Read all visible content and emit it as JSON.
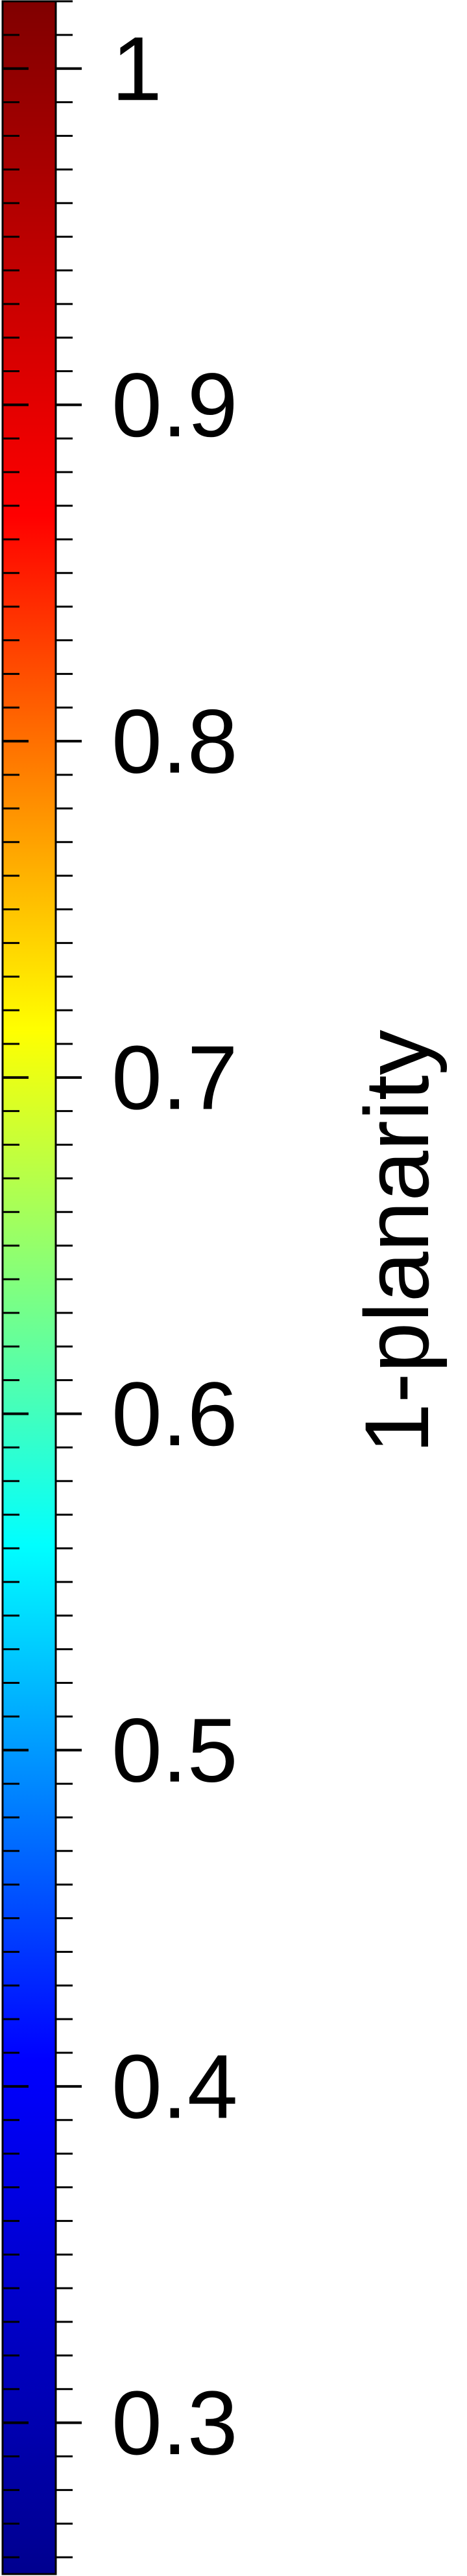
{
  "chart_data": {
    "type": "heatmap",
    "colorbar_orientation": "vertical",
    "colormap": "jet",
    "colormap_stops": [
      "#00008f",
      "#0000ff",
      "#00ffff",
      "#ffff00",
      "#ff0000",
      "#800000"
    ],
    "ylim": [
      0.255,
      1.02
    ],
    "ticks": [
      0.3,
      0.4,
      0.5,
      0.6,
      0.7,
      0.8,
      0.9,
      1
    ],
    "tick_labels": [
      "0.3",
      "0.4",
      "0.5",
      "0.6",
      "0.7",
      "0.8",
      "0.9",
      "1"
    ],
    "minor_tick_step": 0.01,
    "ylabel": "1-planarity"
  }
}
